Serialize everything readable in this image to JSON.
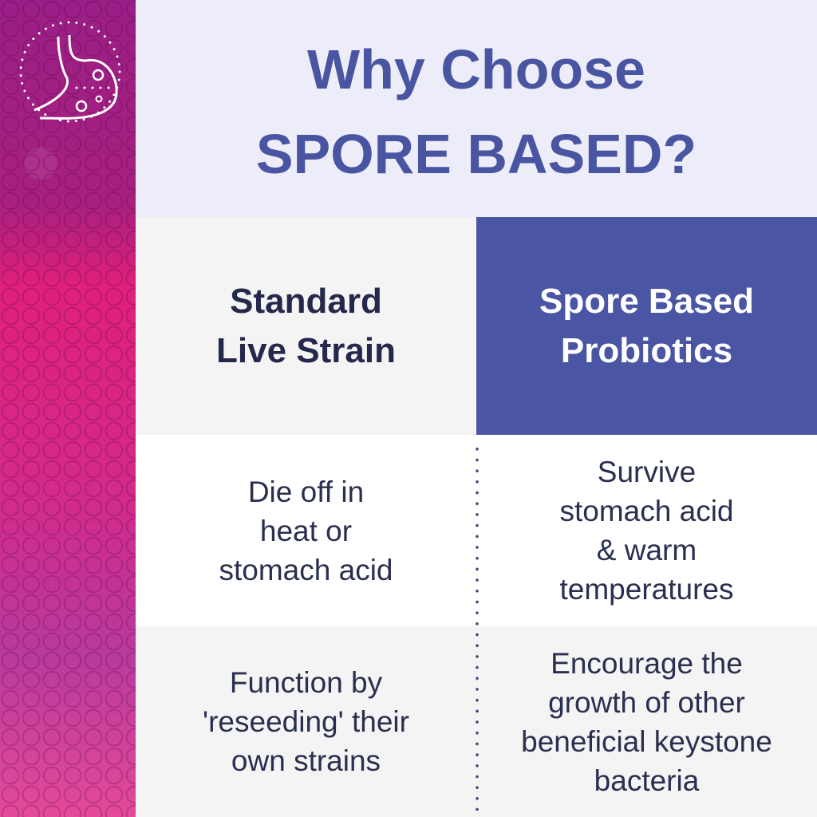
{
  "header": {
    "title_line1": "Why Choose",
    "title_line2": "SPORE BASED?"
  },
  "icon": "stomach-icon",
  "columns": {
    "left": {
      "heading_line1": "Standard",
      "heading_line2": "Live Strain"
    },
    "right": {
      "heading_line1": "Spore Based",
      "heading_line2": "Probiotics"
    }
  },
  "rows": [
    {
      "left": [
        "Die off in",
        "heat or",
        "stomach acid"
      ],
      "right": [
        "Survive",
        "stomach acid",
        "& warm",
        "temperatures"
      ]
    },
    {
      "left": [
        "Function by",
        "'reseeding' their",
        "own strains"
      ],
      "right": [
        "Encourage the",
        "growth of other",
        "beneficial keystone",
        "bacteria"
      ]
    }
  ],
  "colors": {
    "accent": "#4a55a3",
    "header_bg": "#ecedf8",
    "text": "#2a2f4f"
  }
}
